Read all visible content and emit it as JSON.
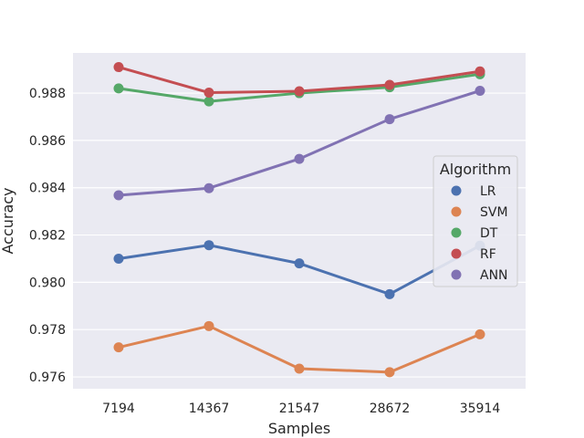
{
  "chart_data": {
    "type": "line",
    "title": "",
    "xlabel": "Samples",
    "ylabel": "Accuracy",
    "categories": [
      "7194",
      "14367",
      "21547",
      "28672",
      "35914"
    ],
    "ylim": [
      0.9755,
      0.9897
    ],
    "yticks": [
      0.976,
      0.978,
      0.98,
      0.982,
      0.984,
      0.986,
      0.988
    ],
    "ytick_labels": [
      "0.976",
      "0.978",
      "0.980",
      "0.982",
      "0.984",
      "0.986",
      "0.988"
    ],
    "grid": true,
    "legend": {
      "title": "Algorithm",
      "position": "right"
    },
    "series": [
      {
        "name": "LR",
        "color": "#4c72b0",
        "values": [
          0.981,
          0.98157,
          0.9808,
          0.9795,
          0.98155
        ]
      },
      {
        "name": "SVM",
        "color": "#dd8452",
        "values": [
          0.97725,
          0.97815,
          0.97635,
          0.9762,
          0.9778
        ]
      },
      {
        "name": "DT",
        "color": "#55a868",
        "values": [
          0.9882,
          0.98765,
          0.988,
          0.98825,
          0.9888
        ]
      },
      {
        "name": "RF",
        "color": "#c44e52",
        "values": [
          0.9891,
          0.98802,
          0.98808,
          0.98835,
          0.98892
        ]
      },
      {
        "name": "ANN",
        "color": "#8172b3",
        "values": [
          0.98368,
          0.98398,
          0.98522,
          0.9869,
          0.9881
        ]
      }
    ]
  }
}
